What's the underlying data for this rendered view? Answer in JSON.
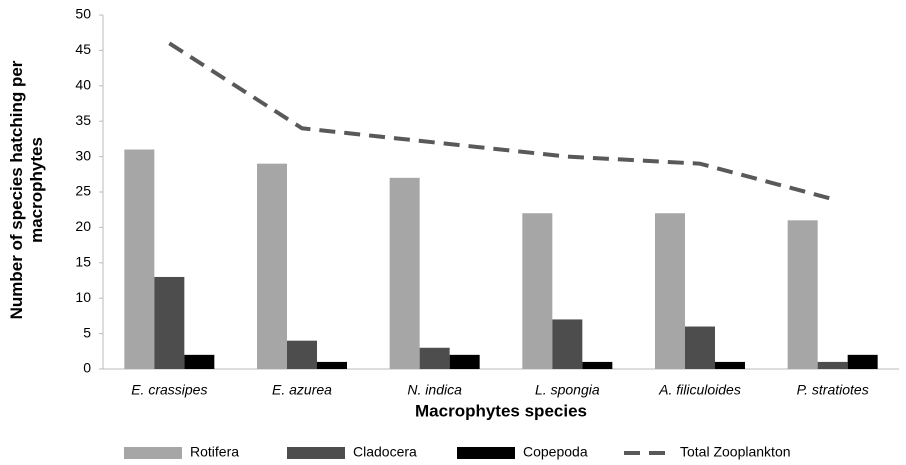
{
  "chart_data": {
    "type": "bar",
    "x_label": "Macrophytes species",
    "y_label": "Number of species hatching per macrophytes",
    "categories": [
      "E. crassipes",
      "E. azurea",
      "N. indica",
      "L. spongia",
      "A. filiculoides",
      "P. stratiotes"
    ],
    "series": [
      {
        "name": "Rotifera",
        "color": "#a6a6a6",
        "values": [
          31,
          29,
          27,
          22,
          22,
          21
        ]
      },
      {
        "name": "Cladocera",
        "color": "#4d4d4d",
        "values": [
          13,
          4,
          3,
          7,
          6,
          1
        ]
      },
      {
        "name": "Copepoda",
        "color": "#000000",
        "values": [
          2,
          1,
          2,
          1,
          1,
          2
        ]
      },
      {
        "name": "Total Zooplankton",
        "type": "line",
        "dashed": true,
        "color": "#595959",
        "values": [
          46,
          34,
          32,
          30,
          29,
          24
        ]
      }
    ],
    "ylim": [
      0,
      50
    ],
    "yticks": [
      0,
      5,
      10,
      15,
      20,
      25,
      30,
      35,
      40,
      45,
      50
    ],
    "legend": "bottom",
    "grid": false
  }
}
